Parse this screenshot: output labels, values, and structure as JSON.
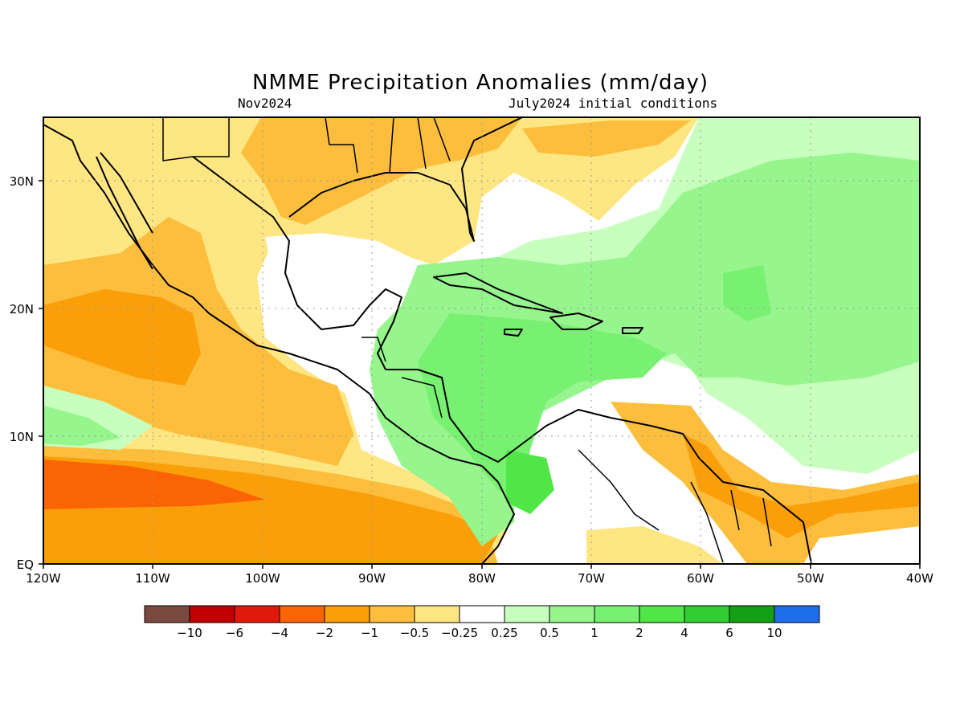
{
  "title": "NMME Precipitation Anomalies (mm/day)",
  "subtitle_left": "Nov2024",
  "subtitle_right": "July2024 initial conditions",
  "map": {
    "lon_range": [
      "120W",
      "40W"
    ],
    "lat_range": [
      "EQ",
      "35N"
    ],
    "x_ticks": [
      "120W",
      "110W",
      "100W",
      "90W",
      "80W",
      "70W",
      "60W",
      "50W",
      "40W"
    ],
    "y_ticks": [
      "EQ",
      "10N",
      "20N",
      "30N"
    ],
    "gridlines": "dotted"
  },
  "colorbar": {
    "colors": [
      "#7b4a3f",
      "#c00000",
      "#e01a0a",
      "#fa6405",
      "#fa9e0a",
      "#fcbe3c",
      "#fee682",
      "#ffffff",
      "#c8ffbe",
      "#96f58c",
      "#78f072",
      "#50e648",
      "#32cd32",
      "#14a014",
      "#1e6eeb"
    ],
    "labels": [
      "−10",
      "−6",
      "−4",
      "−2",
      "−1",
      "−0.5",
      "−0.25",
      "0.25",
      "0.5",
      "1",
      "2",
      "4",
      "6",
      "10"
    ]
  }
}
